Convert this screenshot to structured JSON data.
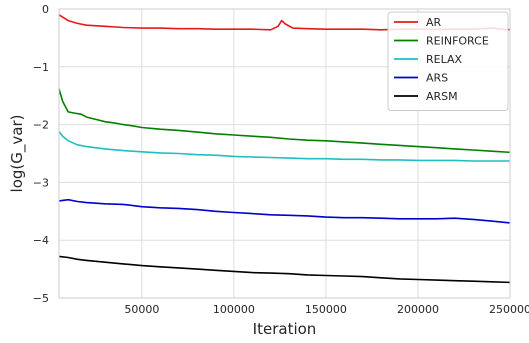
{
  "chart_data": {
    "type": "line",
    "title": "",
    "xlabel": "Iteration",
    "ylabel": "log(G_var)",
    "xlim": [
      5000,
      250000
    ],
    "ylim": [
      -5,
      0
    ],
    "x_ticks": [
      50000,
      100000,
      150000,
      200000,
      250000
    ],
    "x_tick_labels": [
      "50000",
      "100000",
      "150000",
      "200000",
      "250000"
    ],
    "y_ticks": [
      -5,
      -4,
      -3,
      -2,
      -1,
      0
    ],
    "y_tick_labels": [
      "−5",
      "−4",
      "−3",
      "−2",
      "−1",
      "0"
    ],
    "grid": true,
    "legend_position": "top-right",
    "series": [
      {
        "name": "AR",
        "color": "#e41a1c",
        "x": [
          5000,
          10000,
          15000,
          20000,
          30000,
          40000,
          50000,
          60000,
          70000,
          80000,
          90000,
          100000,
          110000,
          120000,
          124000,
          126000,
          128000,
          132000,
          140000,
          150000,
          160000,
          170000,
          180000,
          190000,
          200000,
          210000,
          220000,
          230000,
          240000,
          250000
        ],
        "y": [
          -0.1,
          -0.2,
          -0.25,
          -0.28,
          -0.3,
          -0.32,
          -0.33,
          -0.33,
          -0.34,
          -0.34,
          -0.35,
          -0.35,
          -0.35,
          -0.36,
          -0.3,
          -0.2,
          -0.26,
          -0.33,
          -0.34,
          -0.35,
          -0.35,
          -0.35,
          -0.36,
          -0.35,
          -0.35,
          -0.35,
          -0.35,
          -0.35,
          -0.33,
          -0.36
        ]
      },
      {
        "name": "REINFORCE",
        "color": "#008000",
        "x": [
          5000,
          7000,
          10000,
          13000,
          17000,
          20000,
          25000,
          30000,
          35000,
          40000,
          45000,
          50000,
          60000,
          70000,
          80000,
          90000,
          100000,
          110000,
          120000,
          130000,
          140000,
          150000,
          160000,
          170000,
          180000,
          190000,
          200000,
          210000,
          220000,
          230000,
          240000,
          250000
        ],
        "y": [
          -1.38,
          -1.6,
          -1.78,
          -1.8,
          -1.82,
          -1.87,
          -1.91,
          -1.95,
          -1.97,
          -2.0,
          -2.02,
          -2.05,
          -2.08,
          -2.1,
          -2.13,
          -2.16,
          -2.18,
          -2.2,
          -2.22,
          -2.25,
          -2.27,
          -2.28,
          -2.3,
          -2.32,
          -2.34,
          -2.36,
          -2.38,
          -2.4,
          -2.42,
          -2.44,
          -2.46,
          -2.48
        ]
      },
      {
        "name": "RELAX",
        "color": "#1fbfbf",
        "x": [
          5000,
          7000,
          10000,
          15000,
          20000,
          30000,
          40000,
          50000,
          60000,
          70000,
          80000,
          90000,
          100000,
          110000,
          120000,
          130000,
          140000,
          150000,
          160000,
          170000,
          180000,
          190000,
          200000,
          210000,
          220000,
          230000,
          240000,
          250000
        ],
        "y": [
          -2.12,
          -2.2,
          -2.28,
          -2.35,
          -2.38,
          -2.42,
          -2.45,
          -2.47,
          -2.49,
          -2.5,
          -2.52,
          -2.53,
          -2.55,
          -2.56,
          -2.57,
          -2.58,
          -2.59,
          -2.59,
          -2.6,
          -2.6,
          -2.61,
          -2.61,
          -2.62,
          -2.62,
          -2.62,
          -2.63,
          -2.63,
          -2.63
        ]
      },
      {
        "name": "ARS",
        "color": "#0000cc",
        "x": [
          5000,
          10000,
          15000,
          20000,
          30000,
          40000,
          50000,
          60000,
          70000,
          80000,
          90000,
          100000,
          110000,
          120000,
          130000,
          140000,
          150000,
          160000,
          170000,
          180000,
          190000,
          200000,
          210000,
          220000,
          230000,
          240000,
          250000
        ],
        "y": [
          -3.32,
          -3.3,
          -3.33,
          -3.35,
          -3.37,
          -3.38,
          -3.42,
          -3.44,
          -3.45,
          -3.47,
          -3.5,
          -3.52,
          -3.54,
          -3.56,
          -3.57,
          -3.58,
          -3.6,
          -3.61,
          -3.61,
          -3.62,
          -3.63,
          -3.63,
          -3.63,
          -3.62,
          -3.64,
          -3.67,
          -3.7
        ]
      },
      {
        "name": "ARSM",
        "color": "#000000",
        "x": [
          5000,
          10000,
          15000,
          20000,
          30000,
          40000,
          50000,
          60000,
          70000,
          80000,
          90000,
          100000,
          110000,
          120000,
          130000,
          140000,
          150000,
          160000,
          170000,
          180000,
          190000,
          200000,
          210000,
          220000,
          230000,
          240000,
          250000
        ],
        "y": [
          -4.28,
          -4.3,
          -4.33,
          -4.35,
          -4.38,
          -4.41,
          -4.44,
          -4.46,
          -4.48,
          -4.5,
          -4.52,
          -4.54,
          -4.56,
          -4.57,
          -4.58,
          -4.6,
          -4.61,
          -4.62,
          -4.63,
          -4.65,
          -4.67,
          -4.68,
          -4.69,
          -4.7,
          -4.71,
          -4.72,
          -4.73
        ]
      }
    ]
  }
}
